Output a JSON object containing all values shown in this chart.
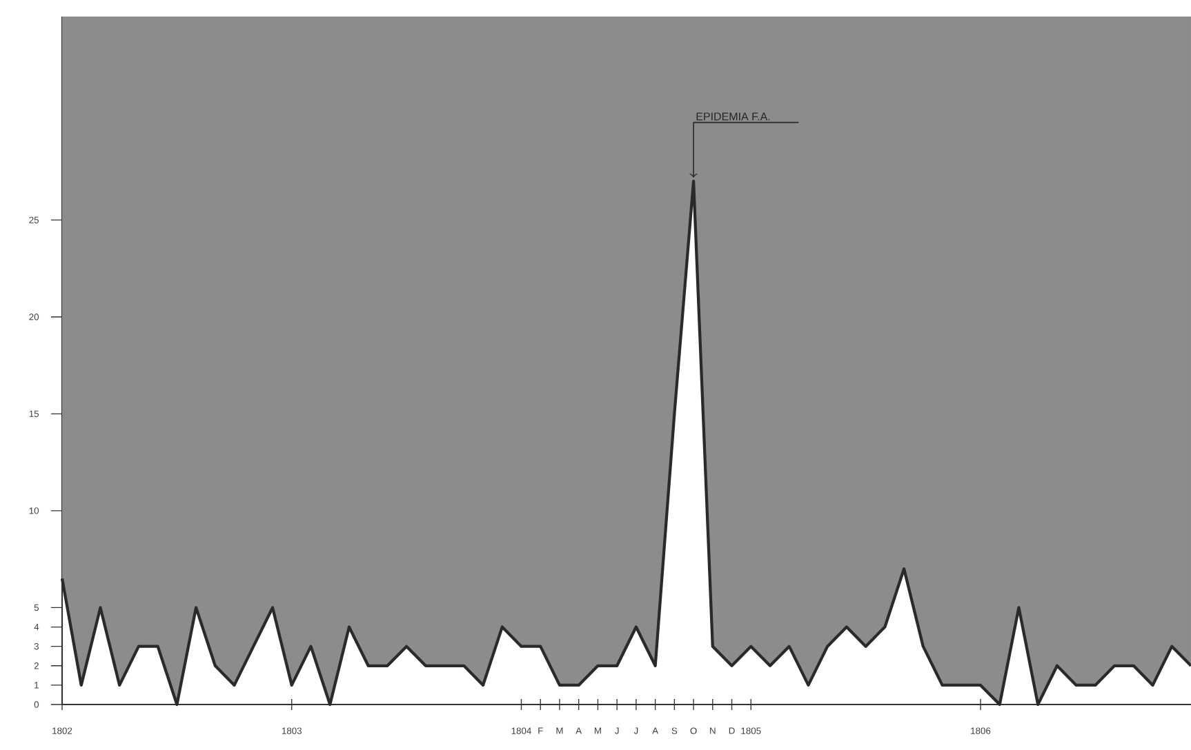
{
  "chart_data": {
    "type": "line",
    "color": "#2a2a2a",
    "marker": "none",
    "line_style": "solid",
    "grid": false,
    "x": [
      "1802-01",
      "1802-02",
      "1802-03",
      "1802-04",
      "1802-05",
      "1802-06",
      "1802-07",
      "1802-08",
      "1802-09",
      "1802-10",
      "1802-11",
      "1802-12",
      "1803-01",
      "1803-02",
      "1803-03",
      "1803-04",
      "1803-05",
      "1803-06",
      "1803-07",
      "1803-08",
      "1803-09",
      "1803-10",
      "1803-11",
      "1803-12",
      "1804-01",
      "1804-02",
      "1804-03",
      "1804-04",
      "1804-05",
      "1804-06",
      "1804-07",
      "1804-08",
      "1804-09",
      "1804-10",
      "1804-11",
      "1804-12",
      "1805-01",
      "1805-02",
      "1805-03",
      "1805-04",
      "1805-05",
      "1805-06",
      "1805-07",
      "1805-08",
      "1805-09",
      "1805-10",
      "1805-11",
      "1805-12",
      "1806-01",
      "1806-02",
      "1806-03",
      "1806-04",
      "1806-05",
      "1806-06",
      "1806-07",
      "1806-08",
      "1806-09",
      "1806-10",
      "1806-11",
      "1806-12"
    ],
    "values": [
      6.5,
      1,
      5,
      1,
      3,
      3,
      0,
      5,
      2,
      1,
      3,
      5,
      1,
      3,
      0,
      4,
      2,
      2,
      3,
      2,
      2,
      2,
      1,
      4,
      3,
      3,
      1,
      1,
      2,
      2,
      4,
      2,
      15,
      27,
      3,
      2,
      3,
      2,
      3,
      1,
      3,
      4,
      3,
      4,
      7,
      3,
      1,
      1,
      1,
      0,
      5,
      0,
      2,
      1,
      1,
      2,
      2,
      1,
      3,
      2
    ],
    "xlim": [
      "1802-01",
      "1806-12"
    ],
    "xticks": [
      {
        "value": "1802-01",
        "label": "1802"
      },
      {
        "value": "1803-01",
        "label": "1803"
      },
      {
        "value": "1804-01",
        "label": "1804"
      },
      {
        "value": "1804-02",
        "label": "F"
      },
      {
        "value": "1804-03",
        "label": "M"
      },
      {
        "value": "1804-04",
        "label": "A"
      },
      {
        "value": "1804-05",
        "label": "M"
      },
      {
        "value": "1804-06",
        "label": "J"
      },
      {
        "value": "1804-07",
        "label": "J"
      },
      {
        "value": "1804-08",
        "label": "A"
      },
      {
        "value": "1804-09",
        "label": "S"
      },
      {
        "value": "1804-10",
        "label": "O"
      },
      {
        "value": "1804-11",
        "label": "N"
      },
      {
        "value": "1804-12",
        "label": "D"
      },
      {
        "value": "1805-01",
        "label": "1805"
      },
      {
        "value": "1806-01",
        "label": "1806"
      }
    ],
    "ylim": [
      0,
      35.5
    ],
    "yticks": [
      0,
      1,
      2,
      3,
      4,
      5,
      10,
      15,
      20,
      25
    ],
    "annotations": [
      {
        "text": "EPIDEMIA F.A.",
        "x": "1804-10",
        "y": 27
      }
    ]
  }
}
